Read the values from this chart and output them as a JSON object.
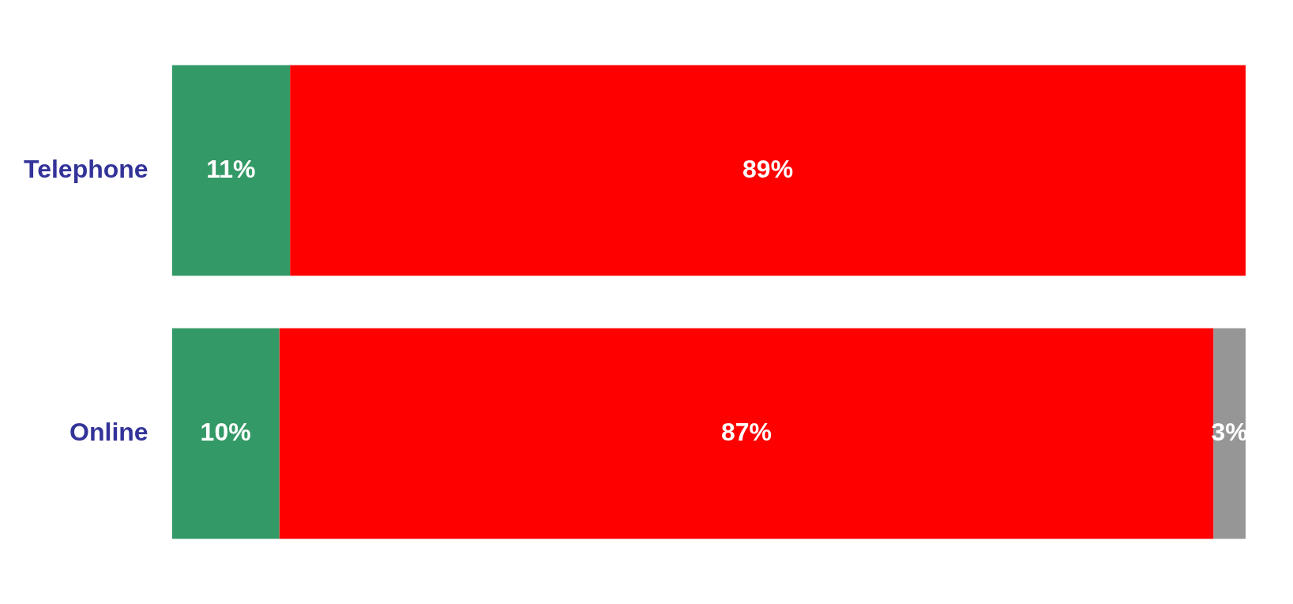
{
  "chart_data": {
    "type": "bar",
    "orientation": "horizontal",
    "stacked": true,
    "categories": [
      "Telephone",
      "Online"
    ],
    "tick_labels": "y",
    "series": [
      {
        "color": "#339966",
        "values": [
          11,
          10
        ],
        "value_labels": [
          "11%",
          "10%"
        ]
      },
      {
        "color": "#ff0000",
        "values": [
          89,
          87
        ],
        "value_labels": [
          "89%",
          "87%"
        ]
      },
      {
        "color": "#969696",
        "values": [
          null,
          3
        ],
        "value_labels": [
          null,
          "3%"
        ]
      }
    ]
  }
}
